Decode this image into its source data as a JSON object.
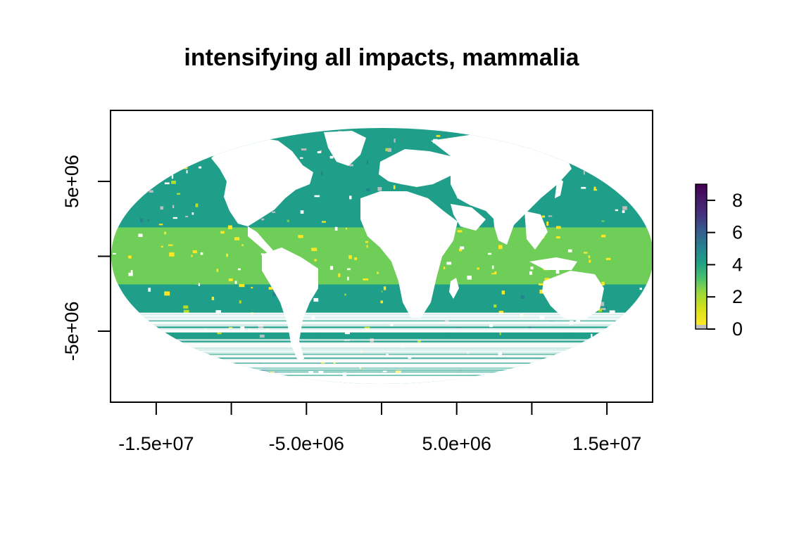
{
  "chart_data": {
    "type": "heatmap",
    "subtype": "raster-map",
    "projection": "mollweide",
    "title": "intensifying all impacts, mammalia",
    "xlabel": "",
    "ylabel": "",
    "x_ticks": [
      {
        "value": -15000000,
        "label": "-1.5e+07"
      },
      {
        "value": -10000000,
        "label": ""
      },
      {
        "value": -5000000,
        "label": "-5.0e+06"
      },
      {
        "value": 0,
        "label": ""
      },
      {
        "value": 5000000,
        "label": "5.0e+06"
      },
      {
        "value": 10000000,
        "label": ""
      },
      {
        "value": 15000000,
        "label": "1.5e+07"
      }
    ],
    "y_ticks": [
      {
        "value": 5000000,
        "label": "5e+06"
      },
      {
        "value": 0,
        "label": ""
      },
      {
        "value": -5000000,
        "label": "-5e+06"
      }
    ],
    "xlim": [
      -18040095,
      18040095
    ],
    "ylim": [
      -9745000,
      9745000
    ],
    "legend": {
      "position": "right",
      "min": 0,
      "max": 9,
      "tick_values": [
        0,
        2,
        4,
        6,
        8
      ],
      "tick_labels": [
        "0",
        "2",
        "4",
        "6",
        "8"
      ],
      "colors": [
        "#bdbdbd",
        "#fde725",
        "#b5de2b",
        "#6ece58",
        "#35b779",
        "#1f9e89",
        "#26828e",
        "#31688e",
        "#3e4989",
        "#482878",
        "#440154"
      ]
    },
    "grid": false,
    "bands": [
      {
        "lat_min": 20,
        "lat_max": 90,
        "dominant_value": 3.5
      },
      {
        "lat_min": -20,
        "lat_max": 20,
        "dominant_value": 2.3
      },
      {
        "lat_min": -90,
        "lat_max": -20,
        "dominant_value": 3.5
      }
    ]
  }
}
